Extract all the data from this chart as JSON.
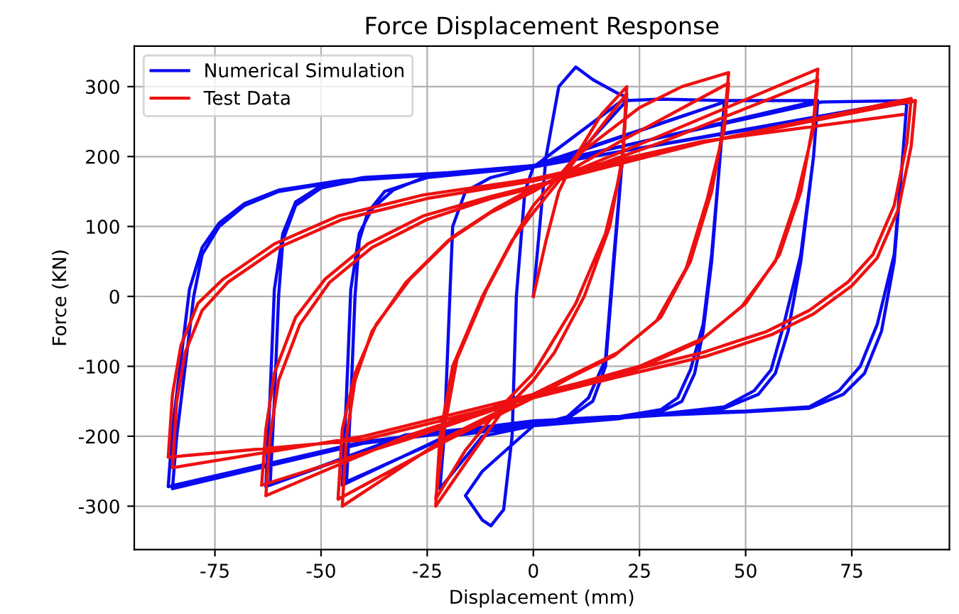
{
  "chart_data": {
    "type": "line",
    "title": "Force Displacement Response",
    "xlabel": "Displacement (mm)",
    "ylabel": "Force (KN)",
    "xlim": [
      -94,
      98
    ],
    "ylim": [
      -362,
      358
    ],
    "xticks": [
      -75,
      -50,
      -25,
      0,
      25,
      50,
      75
    ],
    "yticks": [
      -300,
      -200,
      -100,
      0,
      100,
      200,
      300
    ],
    "grid": true,
    "legend": "top left",
    "series": [
      {
        "name": "Numerical Simulation",
        "color": "#0a0af0",
        "x": [
          0,
          3,
          6,
          10,
          14,
          20,
          22,
          21,
          19,
          17,
          14,
          8,
          0,
          -12,
          -22,
          -21,
          -20,
          -19,
          -16,
          -10,
          0,
          22,
          21,
          19,
          17,
          13,
          8,
          0,
          -12,
          -16,
          -12,
          -10,
          -7,
          -5,
          -4,
          -2,
          0,
          10,
          22,
          30,
          45,
          44,
          42,
          40,
          38,
          35,
          30,
          20,
          0,
          -20,
          -44,
          -43,
          -42,
          -41,
          -39,
          -35,
          -25,
          0,
          45,
          44,
          42,
          40,
          37,
          34,
          30,
          20,
          0,
          -20,
          -45,
          -44,
          -43,
          -41,
          -38,
          -33,
          -25,
          0,
          46,
          67,
          66,
          63,
          60,
          57,
          53,
          45,
          30,
          0,
          -30,
          -62,
          -61,
          -60,
          -59,
          -56,
          -50,
          -40,
          -20,
          0,
          67,
          66,
          63,
          59,
          56,
          52,
          45,
          30,
          0,
          -30,
          -63,
          -62,
          -61,
          -59,
          -56,
          -50,
          -40,
          -20,
          0,
          68,
          88,
          87,
          85,
          82,
          78,
          73,
          65,
          50,
          30,
          0,
          -40,
          -85,
          -84,
          -82,
          -80,
          -78,
          -74,
          -68,
          -60,
          -45,
          -20,
          0,
          88,
          87,
          85,
          81,
          77,
          72,
          65,
          50,
          30,
          0,
          -40,
          -86,
          -85,
          -83,
          -81,
          -78,
          -74,
          -68,
          -60,
          -45,
          -20,
          0,
          89
        ],
        "values": [
          0,
          200,
          300,
          328,
          310,
          290,
          285,
          200,
          50,
          -100,
          -150,
          -175,
          -185,
          -200,
          -275,
          -200,
          -50,
          100,
          150,
          170,
          185,
          285,
          200,
          60,
          -90,
          -145,
          -172,
          -185,
          -250,
          -285,
          -320,
          -328,
          -305,
          -200,
          0,
          150,
          185,
          200,
          280,
          282,
          280,
          200,
          50,
          -50,
          -110,
          -150,
          -165,
          -175,
          -185,
          -200,
          -265,
          -150,
          0,
          80,
          120,
          150,
          170,
          185,
          278,
          200,
          60,
          -40,
          -105,
          -145,
          -162,
          -172,
          -183,
          -198,
          -270,
          -140,
          10,
          90,
          125,
          152,
          172,
          187,
          280,
          280,
          200,
          50,
          -50,
          -110,
          -140,
          -160,
          -170,
          -182,
          -200,
          -270,
          -150,
          0,
          80,
          130,
          155,
          168,
          175,
          185,
          280,
          200,
          60,
          -40,
          -105,
          -135,
          -158,
          -168,
          -180,
          -198,
          -272,
          -140,
          10,
          90,
          135,
          158,
          170,
          177,
          187,
          278,
          280,
          200,
          50,
          -50,
          -110,
          -140,
          -160,
          -165,
          -170,
          -180,
          -210,
          -275,
          -200,
          -100,
          0,
          60,
          100,
          130,
          150,
          165,
          175,
          185,
          280,
          200,
          60,
          -40,
          -100,
          -135,
          -158,
          -164,
          -168,
          -178,
          -208,
          -272,
          -190,
          -90,
          10,
          70,
          105,
          133,
          152,
          166,
          176,
          186,
          278
        ]
      },
      {
        "name": "Test Data",
        "color": "#ee1010",
        "x": [
          0,
          3,
          6,
          10,
          16,
          22,
          21,
          18,
          12,
          5,
          0,
          -8,
          -15,
          -23,
          -22,
          -19,
          -12,
          -5,
          0,
          8,
          22,
          21,
          17,
          10,
          0,
          -8,
          -16,
          -23,
          -21,
          -18,
          -11,
          -4,
          0,
          10,
          25,
          35,
          46,
          45,
          42,
          37,
          30,
          20,
          10,
          0,
          -20,
          -45,
          -44,
          -42,
          -38,
          -30,
          -20,
          -10,
          0,
          20,
          46,
          45,
          41,
          36,
          29,
          19,
          9,
          0,
          -20,
          -46,
          -45,
          -42,
          -37,
          -29,
          -19,
          -9,
          0,
          30,
          67,
          66,
          63,
          58,
          50,
          40,
          25,
          10,
          0,
          -30,
          -63,
          -62,
          -60,
          -55,
          -48,
          -38,
          -25,
          -10,
          0,
          30,
          67,
          66,
          62,
          57,
          49,
          39,
          24,
          10,
          0,
          -30,
          -64,
          -63,
          -61,
          -56,
          -49,
          -39,
          -26,
          -10,
          0,
          40,
          89,
          88,
          85,
          80,
          74,
          65,
          55,
          40,
          20,
          0,
          -40,
          -85,
          -84,
          -82,
          -78,
          -72,
          -60,
          -45,
          -25,
          0,
          40,
          90,
          89,
          86,
          81,
          75,
          66,
          56,
          41,
          20,
          0,
          -40,
          -86,
          -85,
          -83,
          -79,
          -73,
          -61,
          -46,
          -26,
          0,
          40,
          87
        ],
        "values": [
          0,
          80,
          150,
          200,
          260,
          300,
          200,
          100,
          0,
          -80,
          -120,
          -170,
          -230,
          -300,
          -200,
          -100,
          0,
          80,
          120,
          180,
          290,
          190,
          90,
          -10,
          -110,
          -160,
          -220,
          -290,
          -190,
          -90,
          10,
          90,
          130,
          200,
          270,
          300,
          320,
          250,
          150,
          50,
          -30,
          -80,
          -110,
          -140,
          -200,
          -300,
          -200,
          -120,
          -50,
          20,
          80,
          120,
          150,
          220,
          305,
          240,
          140,
          40,
          -35,
          -85,
          -115,
          -145,
          -205,
          -290,
          -190,
          -110,
          -40,
          25,
          85,
          125,
          155,
          230,
          325,
          250,
          150,
          60,
          -10,
          -60,
          -100,
          -125,
          -140,
          -200,
          -285,
          -200,
          -120,
          -40,
          20,
          70,
          110,
          140,
          155,
          220,
          310,
          240,
          140,
          50,
          -15,
          -65,
          -105,
          -128,
          -143,
          -205,
          -270,
          -190,
          -110,
          -30,
          25,
          75,
          115,
          143,
          158,
          220,
          283,
          220,
          130,
          60,
          20,
          -20,
          -50,
          -80,
          -110,
          -140,
          -200,
          -245,
          -150,
          -80,
          -20,
          20,
          70,
          110,
          140,
          165,
          220,
          280,
          215,
          125,
          55,
          15,
          -25,
          -55,
          -85,
          -115,
          -145,
          -205,
          -230,
          -140,
          -70,
          -10,
          25,
          75,
          115,
          145,
          168,
          222,
          260
        ]
      }
    ]
  }
}
